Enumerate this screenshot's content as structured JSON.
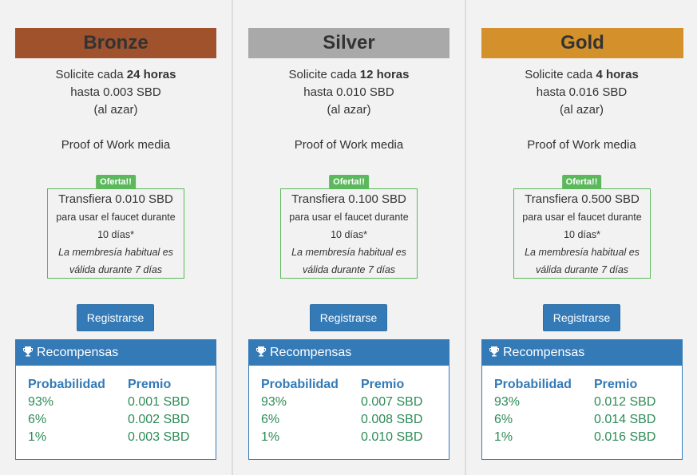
{
  "colors": {
    "bronze": "#a0522d",
    "silver": "#a9a9a9",
    "gold": "#d4902a",
    "primary": "#337ab7",
    "success": "#5cb85c",
    "reward_value": "#2e8b57"
  },
  "tiers": [
    {
      "name": "Bronze",
      "claim_prefix": "Solicite cada",
      "claim_interval": "24 horas",
      "max_amount": "hasta 0.003 SBD",
      "random_note": "(al azar)",
      "pow_label": "Proof of Work media",
      "offer": {
        "badge": "Oferta!!",
        "transfer": "Transfiera 0.010 SBD",
        "use_text": "para usar el faucet durante",
        "duration": "10 días*",
        "note_1": "La membresía habitual es",
        "note_2": "válida durante 7 días"
      },
      "register_label": "Registrarse",
      "rewards": {
        "title": "Recompensas",
        "col_prob": "Probabilidad",
        "col_prize": "Premio",
        "rows": [
          {
            "prob": "93%",
            "prize": "0.001 SBD"
          },
          {
            "prob": "6%",
            "prize": "0.002 SBD"
          },
          {
            "prob": "1%",
            "prize": "0.003 SBD"
          }
        ]
      }
    },
    {
      "name": "Silver",
      "claim_prefix": "Solicite cada",
      "claim_interval": "12 horas",
      "max_amount": "hasta 0.010 SBD",
      "random_note": "(al azar)",
      "pow_label": "Proof of Work media",
      "offer": {
        "badge": "Oferta!!",
        "transfer": "Transfiera 0.100 SBD",
        "use_text": "para usar el faucet durante",
        "duration": "10 días*",
        "note_1": "La membresía habitual es",
        "note_2": "válida durante 7 días"
      },
      "register_label": "Registrarse",
      "rewards": {
        "title": "Recompensas",
        "col_prob": "Probabilidad",
        "col_prize": "Premio",
        "rows": [
          {
            "prob": "93%",
            "prize": "0.007 SBD"
          },
          {
            "prob": "6%",
            "prize": "0.008 SBD"
          },
          {
            "prob": "1%",
            "prize": "0.010 SBD"
          }
        ]
      }
    },
    {
      "name": "Gold",
      "claim_prefix": "Solicite cada",
      "claim_interval": "4 horas",
      "max_amount": "hasta 0.016 SBD",
      "random_note": "(al azar)",
      "pow_label": "Proof of Work media",
      "offer": {
        "badge": "Oferta!!",
        "transfer": "Transfiera 0.500 SBD",
        "use_text": "para usar el faucet durante",
        "duration": "10 días*",
        "note_1": "La membresía habitual es",
        "note_2": "válida durante 7 días"
      },
      "register_label": "Registrarse",
      "rewards": {
        "title": "Recompensas",
        "col_prob": "Probabilidad",
        "col_prize": "Premio",
        "rows": [
          {
            "prob": "93%",
            "prize": "0.012 SBD"
          },
          {
            "prob": "6%",
            "prize": "0.014 SBD"
          },
          {
            "prob": "1%",
            "prize": "0.016 SBD"
          }
        ]
      }
    }
  ]
}
